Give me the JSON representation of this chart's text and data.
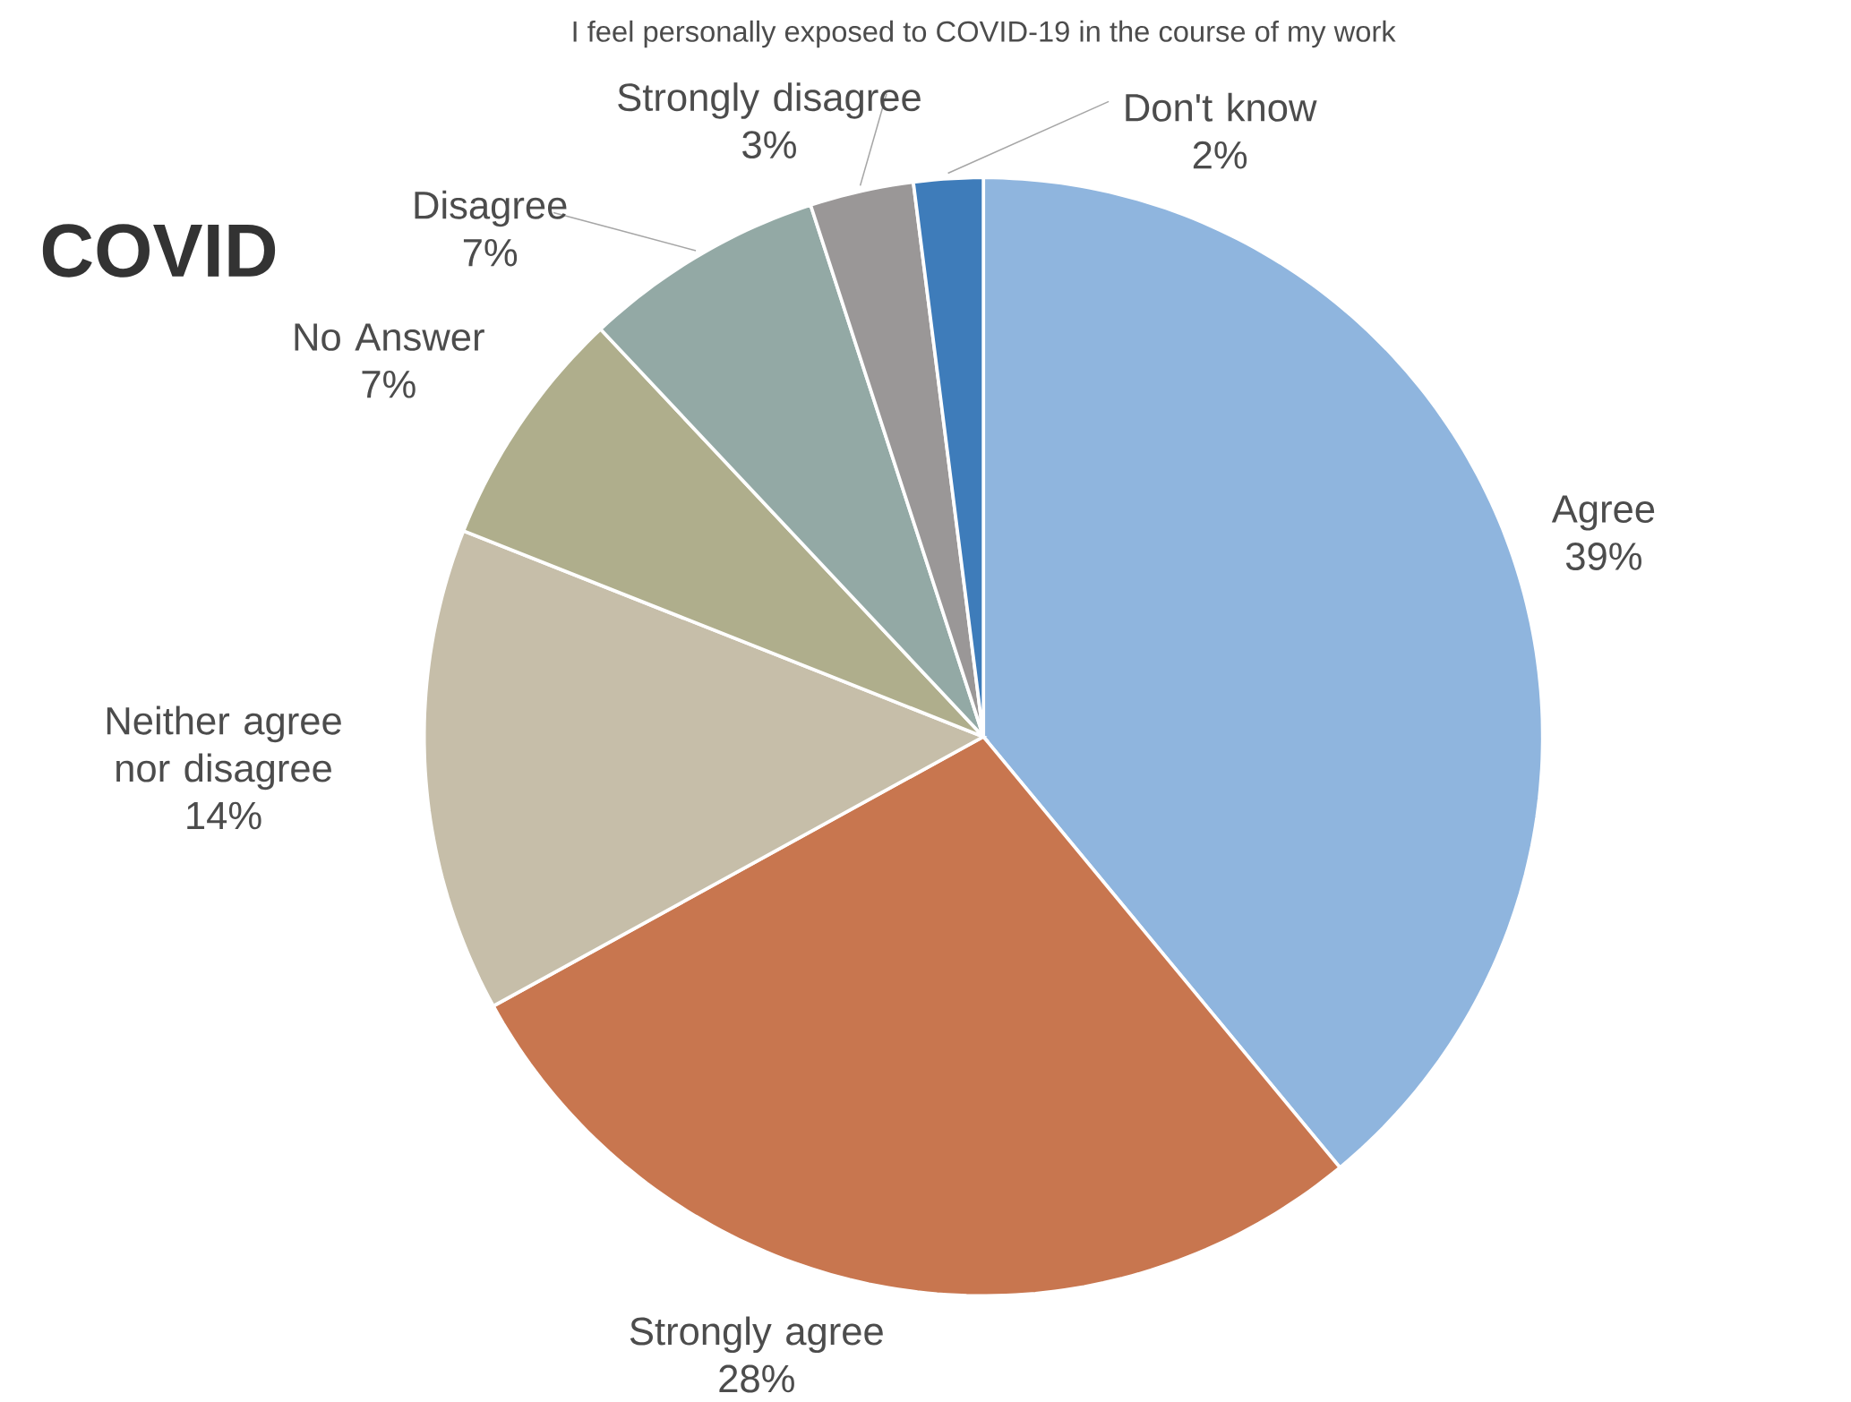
{
  "chart_data": {
    "type": "pie",
    "title": "I feel personally exposed to COVID-19 in the course of my work",
    "categories": [
      "Agree",
      "Strongly agree",
      "Neither agree nor disagree",
      "No Answer",
      "Disagree",
      "Strongly disagree",
      "Don't know"
    ],
    "values": [
      39,
      28,
      14,
      7,
      7,
      3,
      2
    ],
    "value_labels": [
      "39%",
      "28%",
      "14%",
      "7%",
      "7%",
      "3%",
      "2%"
    ],
    "colors": [
      "#8fb5de",
      "#c8764f",
      "#c6bea9",
      "#afae8c",
      "#93a9a5",
      "#9a9797",
      "#3e7cba"
    ],
    "annotations": [
      "COVID"
    ]
  }
}
